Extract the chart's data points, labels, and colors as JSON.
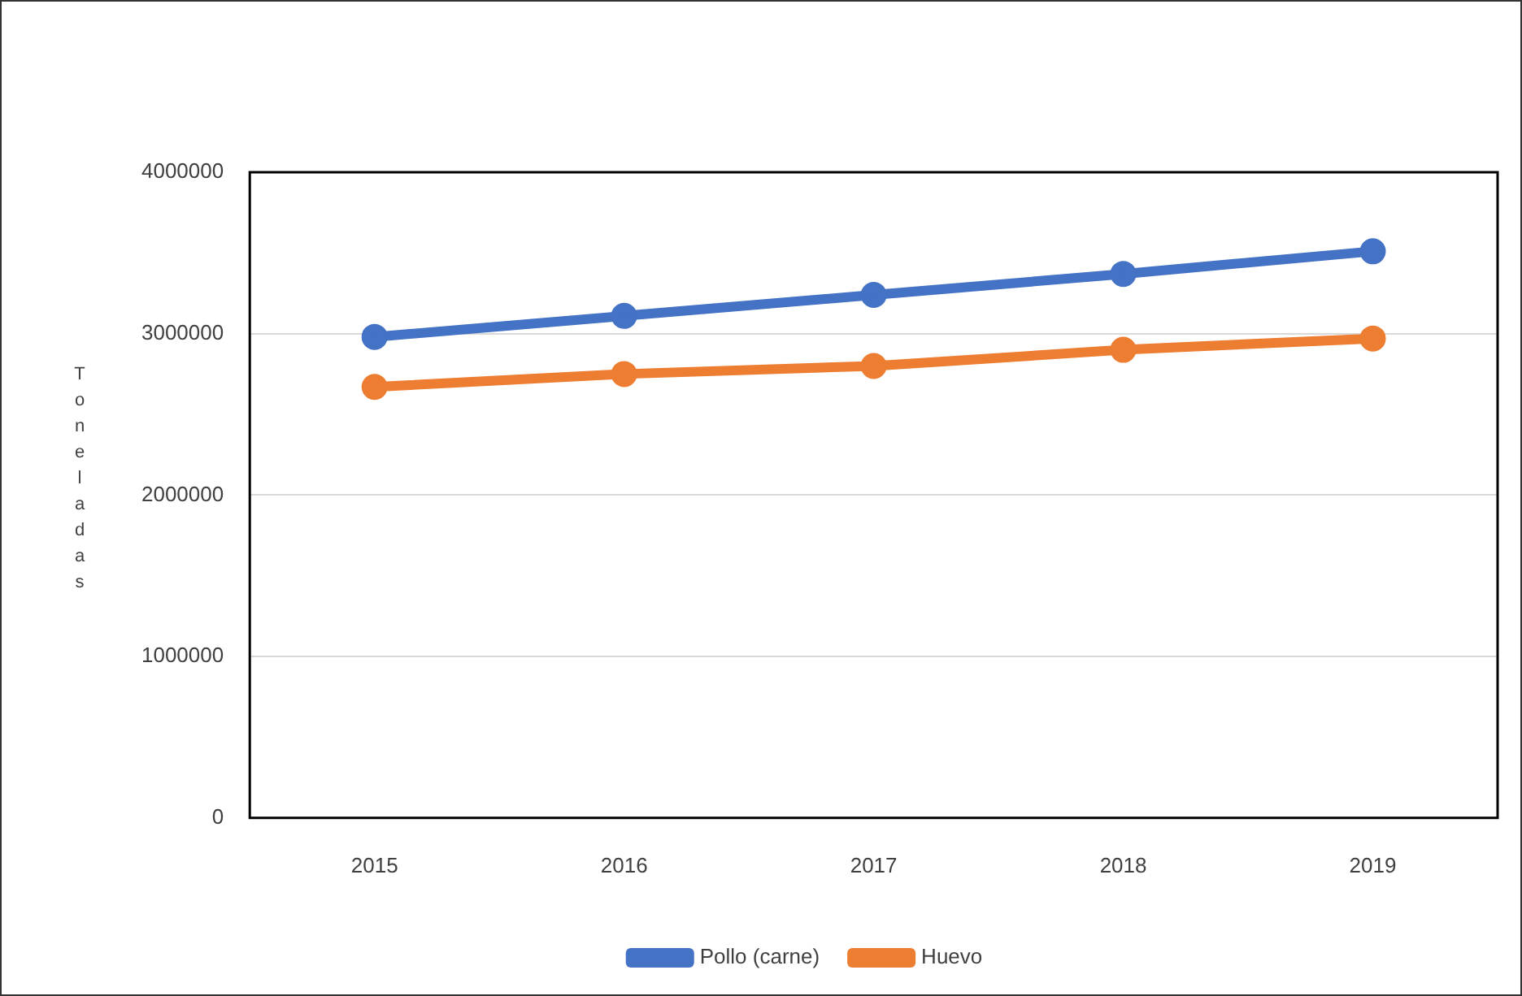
{
  "chart_data": {
    "type": "line",
    "ylabel": "Toneladas",
    "categories": [
      "2015",
      "2016",
      "2017",
      "2018",
      "2019"
    ],
    "series": [
      {
        "name": "Pollo (carne)",
        "color": "#4472c4",
        "values": [
          2980000,
          3110000,
          3240000,
          3370000,
          3510000
        ]
      },
      {
        "name": "Huevo",
        "color": "#ed7d31",
        "values": [
          2670000,
          2750000,
          2800000,
          2900000,
          2970000
        ]
      }
    ],
    "ylim": [
      0,
      4000000
    ],
    "yticks": [
      0,
      1000000,
      2000000,
      3000000,
      4000000
    ],
    "grid": "y",
    "legend": "bottom",
    "marker": "circle",
    "line_style": "solid"
  }
}
